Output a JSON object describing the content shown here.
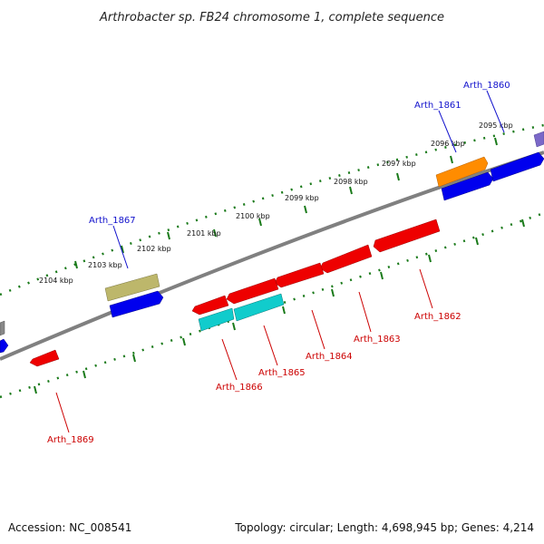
{
  "title": "Arthrobacter sp. FB24 chromosome 1, complete sequence",
  "footer": {
    "accession": "Accession: NC_008541",
    "topology": "Topology: circular; Length: 4,698,945 bp; Genes: 4,214"
  },
  "kbp_labels": [
    "2095 kbp",
    "2096 kbp",
    "2097 kbp",
    "2098 kbp",
    "2099 kbp",
    "2100 kbp",
    "2101 kbp",
    "2102 kbp",
    "2103 kbp",
    "2104 kbp"
  ],
  "gene_labels": {
    "arth_1860": "Arth_1860",
    "arth_1861": "Arth_1861",
    "arth_1862": "Arth_1862",
    "arth_1863": "Arth_1863",
    "arth_1864": "Arth_1864",
    "arth_1865": "Arth_1865",
    "arth_1866": "Arth_1866",
    "arth_1867": "Arth_1867",
    "arth_1869": "Arth_1869"
  },
  "colors": {
    "forward_label": "#1111cc",
    "reverse_label": "#cc0000",
    "backbone": "#808080",
    "tick": "#1a7a1a",
    "gene_red": "#ee0000",
    "gene_blue": "#0000ee",
    "gene_cyan": "#11cccc",
    "gene_orange": "#ff8c00",
    "gene_khaki": "#bdb76b",
    "gene_purple": "#7b68c8"
  }
}
